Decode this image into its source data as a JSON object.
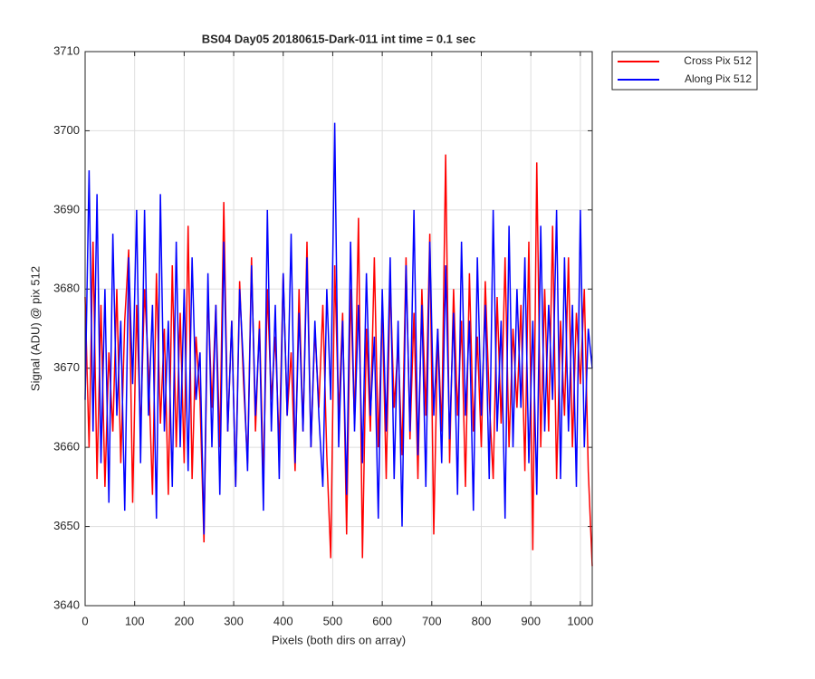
{
  "chart_data": {
    "type": "line",
    "title": "BS04 Day05 20180615-Dark-011 int time = 0.1 sec",
    "x_label": "Pixels (both dirs on array)",
    "y_label": "Signal (ADU) @ pix 512",
    "x": [
      0,
      8,
      16,
      24,
      32,
      40,
      48,
      56,
      64,
      72,
      80,
      88,
      96,
      104,
      112,
      120,
      128,
      136,
      144,
      152,
      160,
      168,
      176,
      184,
      192,
      200,
      208,
      216,
      224,
      232,
      240,
      248,
      256,
      264,
      272,
      280,
      288,
      296,
      304,
      312,
      320,
      328,
      336,
      344,
      352,
      360,
      368,
      376,
      384,
      392,
      400,
      408,
      416,
      424,
      432,
      440,
      448,
      456,
      464,
      472,
      480,
      488,
      496,
      504,
      512,
      520,
      528,
      536,
      544,
      552,
      560,
      568,
      576,
      584,
      592,
      600,
      608,
      616,
      624,
      632,
      640,
      648,
      656,
      664,
      672,
      680,
      688,
      696,
      704,
      712,
      720,
      728,
      736,
      744,
      752,
      760,
      768,
      776,
      784,
      792,
      800,
      808,
      816,
      824,
      832,
      840,
      848,
      856,
      864,
      872,
      880,
      888,
      896,
      904,
      912,
      920,
      928,
      936,
      944,
      952,
      960,
      968,
      976,
      984,
      992,
      1000,
      1008,
      1016,
      1024
    ],
    "series": [
      {
        "name": "Cross Pix 512",
        "color": "#ff0000",
        "values": [
          3679,
          3660,
          3686,
          3656,
          3678,
          3655,
          3672,
          3662,
          3680,
          3658,
          3676,
          3685,
          3653,
          3678,
          3662,
          3680,
          3670,
          3654,
          3682,
          3663,
          3675,
          3654,
          3683,
          3660,
          3677,
          3658,
          3688,
          3656,
          3674,
          3666,
          3648,
          3680,
          3665,
          3678,
          3660,
          3691,
          3662,
          3676,
          3655,
          3681,
          3668,
          3658,
          3684,
          3662,
          3676,
          3656,
          3680,
          3666,
          3674,
          3660,
          3682,
          3664,
          3672,
          3657,
          3680,
          3662,
          3686,
          3660,
          3675,
          3665,
          3678,
          3659,
          3646,
          3683,
          3664,
          3677,
          3649,
          3680,
          3663,
          3689,
          3646,
          3675,
          3662,
          3684,
          3660,
          3678,
          3656,
          3681,
          3665,
          3673,
          3659,
          3684,
          3661,
          3677,
          3656,
          3680,
          3664,
          3687,
          3649,
          3675,
          3662,
          3697,
          3658,
          3680,
          3664,
          3676,
          3655,
          3682,
          3662,
          3674,
          3660,
          3681,
          3666,
          3656,
          3679,
          3663,
          3684,
          3660,
          3675,
          3665,
          3678,
          3657,
          3686,
          3647,
          3696,
          3660,
          3680,
          3662,
          3688,
          3656,
          3676,
          3664,
          3684,
          3660,
          3677,
          3668,
          3680,
          3657,
          3645
        ]
      },
      {
        "name": "Along Pix 512",
        "color": "#0000ff",
        "values": [
          3666,
          3695,
          3662,
          3692,
          3658,
          3680,
          3653,
          3687,
          3664,
          3676,
          3652,
          3684,
          3668,
          3690,
          3658,
          3690,
          3664,
          3678,
          3651,
          3692,
          3662,
          3676,
          3655,
          3686,
          3660,
          3680,
          3657,
          3684,
          3666,
          3672,
          3649,
          3682,
          3660,
          3678,
          3654,
          3686,
          3662,
          3676,
          3655,
          3680,
          3670,
          3657,
          3683,
          3664,
          3675,
          3652,
          3690,
          3662,
          3678,
          3656,
          3682,
          3664,
          3687,
          3658,
          3677,
          3662,
          3684,
          3660,
          3676,
          3664,
          3655,
          3680,
          3666,
          3701,
          3660,
          3676,
          3654,
          3686,
          3662,
          3678,
          3658,
          3682,
          3664,
          3674,
          3651,
          3680,
          3662,
          3684,
          3656,
          3676,
          3650,
          3683,
          3662,
          3690,
          3659,
          3678,
          3655,
          3686,
          3664,
          3675,
          3658,
          3683,
          3661,
          3677,
          3654,
          3686,
          3664,
          3676,
          3652,
          3684,
          3664,
          3678,
          3656,
          3690,
          3662,
          3676,
          3651,
          3688,
          3660,
          3680,
          3665,
          3684,
          3658,
          3676,
          3654,
          3688,
          3662,
          3678,
          3666,
          3690,
          3656,
          3684,
          3662,
          3678,
          3655,
          3690,
          3660,
          3675,
          3670
        ]
      }
    ],
    "xlim": [
      0,
      1024
    ],
    "xticks": [
      0,
      100,
      200,
      300,
      400,
      500,
      600,
      700,
      800,
      900,
      1000
    ],
    "ylim": [
      3640,
      3710
    ],
    "yticks": [
      3640,
      3650,
      3660,
      3670,
      3680,
      3690,
      3700,
      3710
    ],
    "grid": true,
    "legend": "outside-top-right"
  }
}
